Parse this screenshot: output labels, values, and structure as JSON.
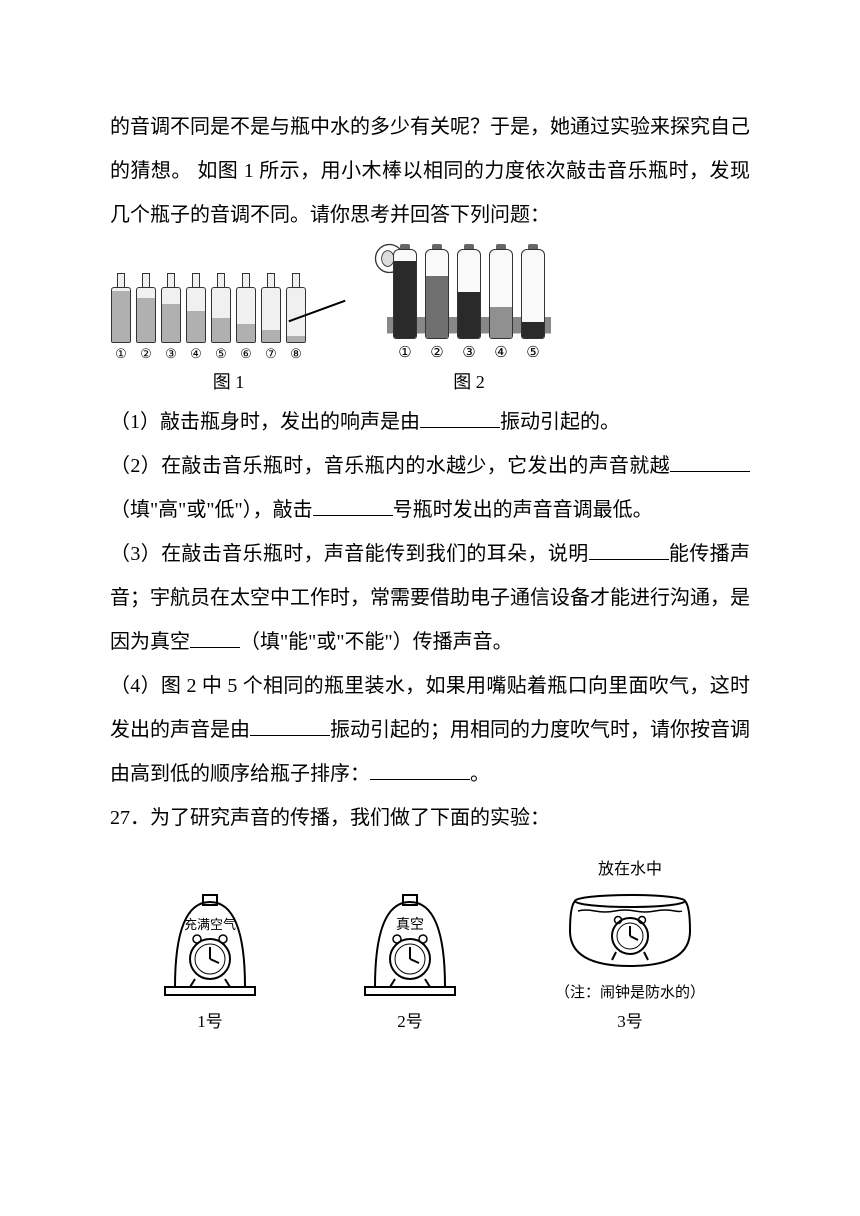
{
  "intro": {
    "line1": "的音调不同是不是与瓶中水的多少有关呢？于是，她通过实验来探究自己的猜想。",
    "line2": "如图 1 所示，用小木棒以相同的力度依次敲击音乐瓶时，发现几个瓶子的音调不同。请你思考并回答下列问题："
  },
  "figure1": {
    "caption": "图 1",
    "bottles": [
      {
        "label": "①",
        "water_pct": 95
      },
      {
        "label": "②",
        "water_pct": 82
      },
      {
        "label": "③",
        "water_pct": 70
      },
      {
        "label": "④",
        "water_pct": 58
      },
      {
        "label": "⑤",
        "water_pct": 45
      },
      {
        "label": "⑥",
        "water_pct": 33
      },
      {
        "label": "⑦",
        "water_pct": 22
      },
      {
        "label": "⑧",
        "water_pct": 12
      }
    ]
  },
  "figure2": {
    "caption": "图 2",
    "bottles": [
      {
        "label": "①",
        "water_pct": 88,
        "color": "#2a2a2a"
      },
      {
        "label": "②",
        "water_pct": 70,
        "color": "#707070"
      },
      {
        "label": "③",
        "water_pct": 52,
        "color": "#2a2a2a"
      },
      {
        "label": "④",
        "water_pct": 35,
        "color": "#909090"
      },
      {
        "label": "⑤",
        "water_pct": 18,
        "color": "#2a2a2a"
      }
    ]
  },
  "q1": {
    "prefix": "（1）敲击瓶身时，发出的响声是由",
    "suffix": "振动引起的。"
  },
  "q2": {
    "part1": "（2）在敲击音乐瓶时，音乐瓶内的水越少，它发出的声音就越",
    "part2": "（填\"高\"或\"低\"），敲击",
    "part3": "号瓶时发出的声音音调最低。"
  },
  "q3": {
    "part1": "（3）在敲击音乐瓶时，声音能传到我们的耳朵，说明",
    "part2": "能传播声音；宇航员在太空中工作时，常需要借助电子通信设备才能进行沟通，是因为真空",
    "part3": "（填\"能\"或\"不能\"）传播声音。"
  },
  "q4": {
    "part1": "（4）图 2 中 5 个相同的瓶里装水，如果用嘴贴着瓶口向里面吹气，这时发出的声音是由",
    "part2": "振动引起的；用相同的力度吹气时，请你按音调由高到低的顺序给瓶子排序：",
    "part3": "。"
  },
  "q27": {
    "header": "27．为了研究声音的传播，我们做了下面的实验：",
    "exp1": {
      "label": "充满空气",
      "caption": "1号"
    },
    "exp2": {
      "label": "真空",
      "caption": "2号"
    },
    "exp3": {
      "title": "放在水中",
      "note": "（注：闹钟是防水的）",
      "caption": "3号"
    }
  }
}
